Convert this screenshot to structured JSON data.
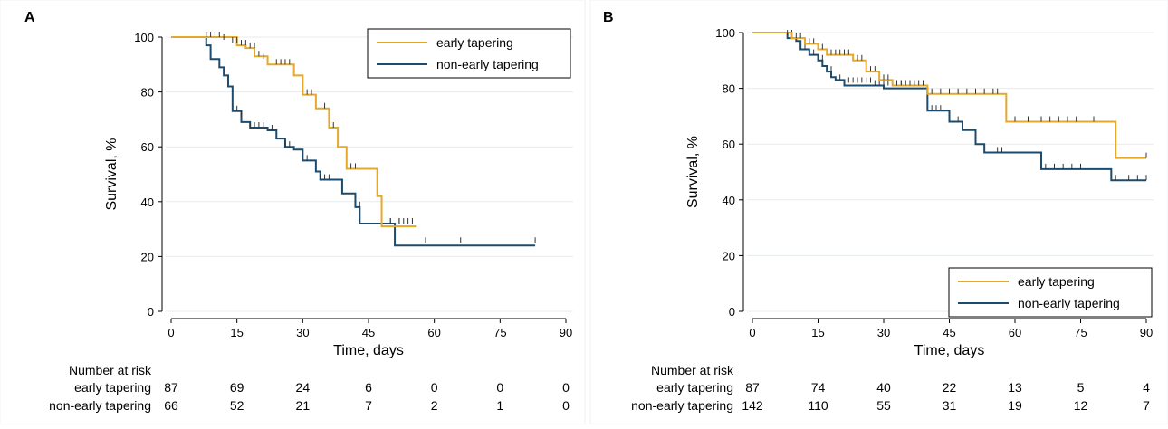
{
  "colors": {
    "early": "#E4A82A",
    "nonearly": "#1B4B6E",
    "grid": "#e6ecef",
    "axis": "#000000"
  },
  "chart_data": [
    {
      "panel_label": "A",
      "type": "line",
      "subtype": "kaplan-meier step",
      "ylabel": "Survival, %",
      "xlabel": "Time, days",
      "xlim": [
        0,
        90
      ],
      "ylim": [
        0,
        100
      ],
      "xticks": [
        "0",
        "15",
        "30",
        "45",
        "60",
        "75",
        "90"
      ],
      "yticks": [
        "0",
        "20",
        "40",
        "60",
        "80",
        "100"
      ],
      "grid": true,
      "legend_position": "top-right",
      "series": [
        {
          "name": "early tapering",
          "color_key": "early",
          "steps": [
            [
              0,
              100
            ],
            [
              15,
              97
            ],
            [
              17,
              96
            ],
            [
              19,
              93
            ],
            [
              22,
              90
            ],
            [
              25,
              90
            ],
            [
              28,
              86
            ],
            [
              30,
              79
            ],
            [
              33,
              74
            ],
            [
              36,
              67
            ],
            [
              38,
              60
            ],
            [
              40,
              52
            ],
            [
              47,
              42
            ],
            [
              48,
              31
            ],
            [
              56,
              31
            ]
          ],
          "censors": [
            [
              8,
              100
            ],
            [
              9,
              100
            ],
            [
              10,
              100
            ],
            [
              11,
              100
            ],
            [
              12,
              99
            ],
            [
              14,
              98
            ],
            [
              15,
              98
            ],
            [
              16,
              97
            ],
            [
              17,
              97
            ],
            [
              18,
              96
            ],
            [
              19,
              96
            ],
            [
              20,
              93
            ],
            [
              21,
              92
            ],
            [
              24,
              90
            ],
            [
              25,
              90
            ],
            [
              26,
              90
            ],
            [
              27,
              90
            ],
            [
              31,
              79
            ],
            [
              32,
              79
            ],
            [
              35,
              74
            ],
            [
              37,
              67
            ],
            [
              41,
              52
            ],
            [
              42,
              52
            ],
            [
              50,
              32
            ],
            [
              52,
              32
            ],
            [
              53,
              32
            ],
            [
              54,
              32
            ],
            [
              55,
              32
            ]
          ]
        },
        {
          "name": "non-early tapering",
          "color_key": "nonearly",
          "steps": [
            [
              0,
              100
            ],
            [
              8,
              97
            ],
            [
              9,
              92
            ],
            [
              11,
              89
            ],
            [
              12,
              86
            ],
            [
              13,
              82
            ],
            [
              14,
              73
            ],
            [
              16,
              69
            ],
            [
              18,
              67
            ],
            [
              22,
              66
            ],
            [
              24,
              63
            ],
            [
              26,
              60
            ],
            [
              28,
              59
            ],
            [
              30,
              55
            ],
            [
              33,
              51
            ],
            [
              34,
              48
            ],
            [
              39,
              43
            ],
            [
              42,
              38
            ],
            [
              43,
              32
            ],
            [
              50,
              32
            ],
            [
              51,
              24
            ],
            [
              83,
              24
            ]
          ],
          "censors": [
            [
              15,
              73
            ],
            [
              16,
              71
            ],
            [
              18,
              67
            ],
            [
              19,
              67
            ],
            [
              20,
              67
            ],
            [
              21,
              67
            ],
            [
              23,
              66
            ],
            [
              26,
              60
            ],
            [
              27,
              60
            ],
            [
              31,
              55
            ],
            [
              34,
              48
            ],
            [
              35,
              48
            ],
            [
              36,
              48
            ],
            [
              43,
              38
            ],
            [
              50,
              32
            ],
            [
              52,
              32
            ],
            [
              58,
              25
            ],
            [
              66,
              25
            ],
            [
              83,
              25
            ]
          ]
        }
      ],
      "risk_table": {
        "header": "Number at risk",
        "rows": [
          {
            "label": "early tapering",
            "values": [
              "87",
              "69",
              "24",
              "6",
              "0",
              "0",
              "0"
            ]
          },
          {
            "label": "non-early tapering",
            "values": [
              "66",
              "52",
              "21",
              "7",
              "2",
              "1",
              "0"
            ]
          }
        ]
      }
    },
    {
      "panel_label": "B",
      "type": "line",
      "subtype": "kaplan-meier step",
      "ylabel": "Survival, %",
      "xlabel": "Time, days",
      "xlim": [
        0,
        90
      ],
      "ylim": [
        0,
        100
      ],
      "xticks": [
        "0",
        "15",
        "30",
        "45",
        "60",
        "75",
        "90"
      ],
      "yticks": [
        "0",
        "20",
        "40",
        "60",
        "80",
        "100"
      ],
      "grid": true,
      "legend_position": "bottom-right",
      "series": [
        {
          "name": "early tapering",
          "color_key": "early",
          "steps": [
            [
              0,
              100
            ],
            [
              9,
              98
            ],
            [
              12,
              96
            ],
            [
              15,
              94
            ],
            [
              17,
              92
            ],
            [
              23,
              90
            ],
            [
              26,
              86
            ],
            [
              29,
              83
            ],
            [
              32,
              81
            ],
            [
              40,
              78
            ],
            [
              58,
              68
            ],
            [
              83,
              55
            ],
            [
              90,
              55
            ]
          ],
          "censors": [
            [
              8,
              99
            ],
            [
              10,
              98
            ],
            [
              11,
              98
            ],
            [
              13,
              96
            ],
            [
              14,
              96
            ],
            [
              16,
              94
            ],
            [
              18,
              92
            ],
            [
              19,
              92
            ],
            [
              20,
              92
            ],
            [
              21,
              92
            ],
            [
              22,
              92
            ],
            [
              24,
              90
            ],
            [
              25,
              90
            ],
            [
              27,
              86
            ],
            [
              28,
              86
            ],
            [
              30,
              83
            ],
            [
              31,
              83
            ],
            [
              33,
              81
            ],
            [
              34,
              81
            ],
            [
              35,
              81
            ],
            [
              36,
              81
            ],
            [
              37,
              81
            ],
            [
              38,
              81
            ],
            [
              39,
              81
            ],
            [
              41,
              78
            ],
            [
              43,
              78
            ],
            [
              45,
              78
            ],
            [
              47,
              78
            ],
            [
              49,
              78
            ],
            [
              51,
              78
            ],
            [
              53,
              78
            ],
            [
              55,
              78
            ],
            [
              56,
              78
            ],
            [
              60,
              68
            ],
            [
              63,
              68
            ],
            [
              66,
              68
            ],
            [
              68,
              68
            ],
            [
              70,
              68
            ],
            [
              72,
              68
            ],
            [
              74,
              68
            ],
            [
              78,
              68
            ],
            [
              90,
              55
            ]
          ]
        },
        {
          "name": "non-early tapering",
          "color_key": "nonearly",
          "steps": [
            [
              0,
              100
            ],
            [
              8,
              98
            ],
            [
              10,
              97
            ],
            [
              11,
              94
            ],
            [
              13,
              92
            ],
            [
              15,
              90
            ],
            [
              16,
              88
            ],
            [
              17,
              86
            ],
            [
              18,
              84
            ],
            [
              19,
              83
            ],
            [
              21,
              81
            ],
            [
              30,
              80
            ],
            [
              40,
              72
            ],
            [
              45,
              68
            ],
            [
              48,
              65
            ],
            [
              51,
              60
            ],
            [
              53,
              57
            ],
            [
              66,
              51
            ],
            [
              82,
              47
            ],
            [
              90,
              47
            ]
          ],
          "censors": [
            [
              9,
              99
            ],
            [
              12,
              94
            ],
            [
              14,
              92
            ],
            [
              16,
              90
            ],
            [
              18,
              86
            ],
            [
              20,
              83
            ],
            [
              22,
              82
            ],
            [
              23,
              82
            ],
            [
              24,
              82
            ],
            [
              25,
              82
            ],
            [
              26,
              82
            ],
            [
              27,
              82
            ],
            [
              28,
              81
            ],
            [
              29,
              81
            ],
            [
              30,
              81
            ],
            [
              31,
              81
            ],
            [
              32,
              81
            ],
            [
              33,
              81
            ],
            [
              34,
              81
            ],
            [
              35,
              81
            ],
            [
              36,
              81
            ],
            [
              41,
              72
            ],
            [
              42,
              72
            ],
            [
              43,
              72
            ],
            [
              47,
              68
            ],
            [
              56,
              57
            ],
            [
              57,
              57
            ],
            [
              67,
              51
            ],
            [
              69,
              51
            ],
            [
              71,
              51
            ],
            [
              73,
              51
            ],
            [
              75,
              51
            ],
            [
              83,
              47
            ],
            [
              86,
              47
            ],
            [
              88,
              47
            ],
            [
              90,
              47
            ]
          ]
        }
      ],
      "risk_table": {
        "header": "Number at risk",
        "rows": [
          {
            "label": "early tapering",
            "values": [
              "87",
              "74",
              "40",
              "22",
              "13",
              "5",
              "4"
            ]
          },
          {
            "label": "non-early tapering",
            "values": [
              "142",
              "110",
              "55",
              "31",
              "19",
              "12",
              "7"
            ]
          }
        ]
      }
    }
  ]
}
